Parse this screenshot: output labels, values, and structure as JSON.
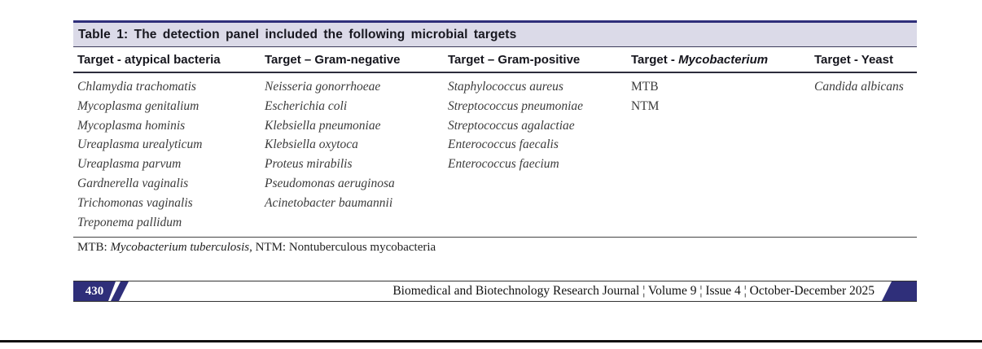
{
  "colors": {
    "navy": "#2f2f7a",
    "lavender": "#dbdae8"
  },
  "table": {
    "title": "Table 1: The detection panel included the following microbial targets",
    "columns": [
      {
        "header_prefix": "Target - atypical bacteria",
        "header_italic": "",
        "rows_italic": true,
        "rows": [
          "Chlamydia trachomatis",
          "Mycoplasma genitalium",
          "Mycoplasma hominis",
          "Ureaplasma urealyticum",
          "Ureaplasma parvum",
          "Gardnerella vaginalis",
          "Trichomonas vaginalis",
          "Treponema pallidum"
        ]
      },
      {
        "header_prefix": "Target – Gram-negative",
        "header_italic": "",
        "rows_italic": true,
        "rows": [
          "Neisseria gonorrhoeae",
          "Escherichia coli",
          "Klebsiella pneumoniae",
          "Klebsiella oxytoca",
          "Proteus mirabilis",
          "Pseudomonas aeruginosa",
          "Acinetobacter baumannii"
        ]
      },
      {
        "header_prefix": "Target – Gram-positive",
        "header_italic": "",
        "rows_italic": true,
        "rows": [
          "Staphylococcus aureus",
          "Streptococcus pneumoniae",
          "Streptococcus agalactiae",
          "Enterococcus faecalis",
          "Enterococcus faecium"
        ]
      },
      {
        "header_prefix": "Target - ",
        "header_italic": "Mycobacterium",
        "rows_italic": false,
        "rows": [
          "MTB",
          "NTM"
        ]
      },
      {
        "header_prefix": "Target - Yeast",
        "header_italic": "",
        "rows_italic": true,
        "rows": [
          "Candida albicans"
        ]
      }
    ],
    "footnote": {
      "prefix": "MTB: ",
      "italic": "Mycobacterium tuberculosis",
      "suffix": ", NTM: Nontuberculous mycobacteria"
    }
  },
  "footer": {
    "page_number": "430",
    "journal_line": "Biomedical and Biotechnology Research Journal ¦ Volume 9 ¦ Issue 4 ¦ October-December 2025"
  }
}
